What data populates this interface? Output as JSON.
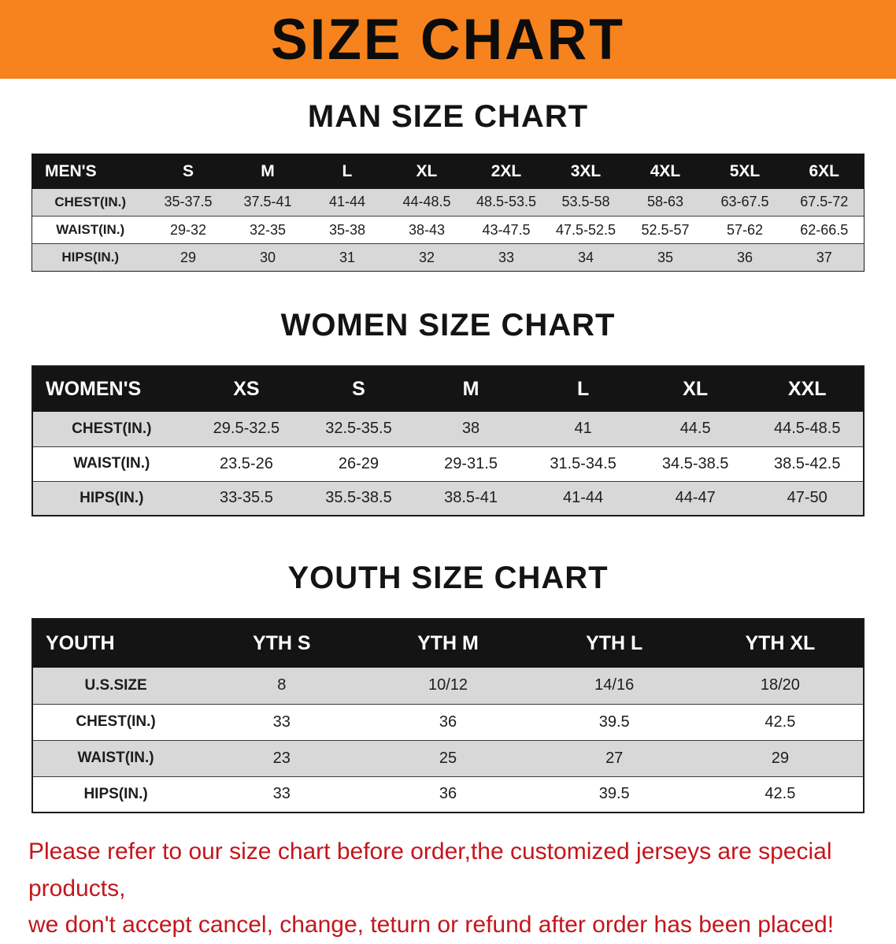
{
  "banner": {
    "title": "SIZE CHART",
    "bg_color": "#f6831d",
    "text_color": "#0c0c0c"
  },
  "sections": [
    {
      "heading": "MAN SIZE CHART",
      "table": {
        "header": [
          "MEN'S",
          "S",
          "M",
          "L",
          "XL",
          "2XL",
          "3XL",
          "4XL",
          "5XL",
          "6XL"
        ],
        "rows": [
          [
            "CHEST(IN.)",
            "35-37.5",
            "37.5-41",
            "41-44",
            "44-48.5",
            "48.5-53.5",
            "53.5-58",
            "58-63",
            "63-67.5",
            "67.5-72"
          ],
          [
            "WAIST(IN.)",
            "29-32",
            "32-35",
            "35-38",
            "38-43",
            "43-47.5",
            "47.5-52.5",
            "52.5-57",
            "57-62",
            "62-66.5"
          ],
          [
            "HIPS(IN.)",
            "29",
            "30",
            "31",
            "32",
            "33",
            "34",
            "35",
            "36",
            "37"
          ]
        ]
      }
    },
    {
      "heading": "WOMEN SIZE CHART",
      "table": {
        "header": [
          "WOMEN'S",
          "XS",
          "S",
          "M",
          "L",
          "XL",
          "XXL"
        ],
        "rows": [
          [
            "CHEST(IN.)",
            "29.5-32.5",
            "32.5-35.5",
            "38",
            "41",
            "44.5",
            "44.5-48.5"
          ],
          [
            "WAIST(IN.)",
            "23.5-26",
            "26-29",
            "29-31.5",
            "31.5-34.5",
            "34.5-38.5",
            "38.5-42.5"
          ],
          [
            "HIPS(IN.)",
            "33-35.5",
            "35.5-38.5",
            "38.5-41",
            "41-44",
            "44-47",
            "47-50"
          ]
        ]
      }
    },
    {
      "heading": "YOUTH SIZE CHART",
      "table": {
        "header": [
          "YOUTH",
          "YTH S",
          "YTH M",
          "YTH L",
          "YTH XL"
        ],
        "rows": [
          [
            "U.S.SIZE",
            "8",
            "10/12",
            "14/16",
            "18/20"
          ],
          [
            "CHEST(IN.)",
            "33",
            "36",
            "39.5",
            "42.5"
          ],
          [
            "WAIST(IN.)",
            "23",
            "25",
            "27",
            "29"
          ],
          [
            "HIPS(IN.)",
            "33",
            "36",
            "39.5",
            "42.5"
          ]
        ]
      }
    }
  ],
  "disclaimer": {
    "line1": "Please refer to our size chart before order,the customized jerseys are special products,",
    "line2": "we don't accept cancel, change, teturn or refund after order has been placed!",
    "text_color": "#c3161c"
  },
  "row_shade_color": "#d8d8d8",
  "header_bar_color": "#141414"
}
